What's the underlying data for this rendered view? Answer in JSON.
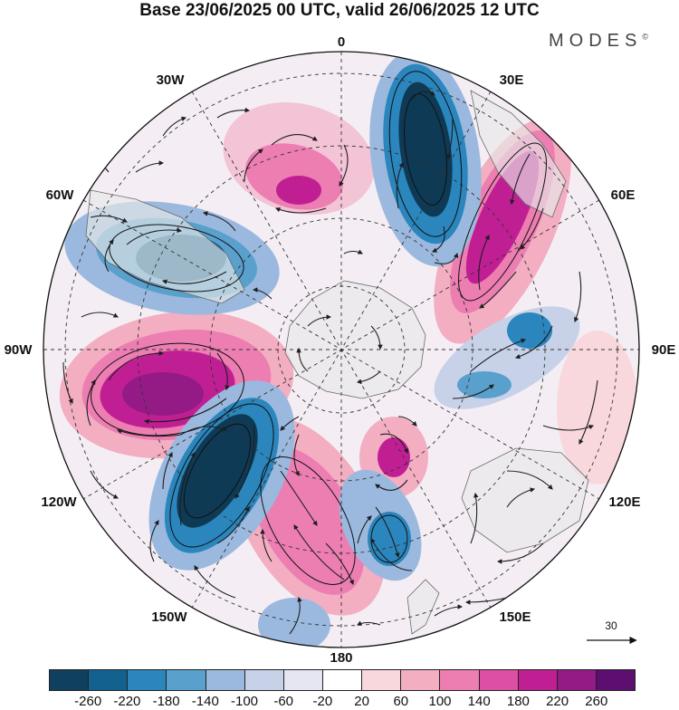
{
  "title": "Base 23/06/2025 00 UTC, valid 26/06/2025 12 UTC",
  "brand": "MODES",
  "brand_mark": "©",
  "longitude_labels": {
    "n": "0",
    "ne": "30E",
    "e60": "60E",
    "e90": "90E",
    "e120": "120E",
    "e150": "150E",
    "s": "180",
    "w150": "150W",
    "w120": "120W",
    "w90": "90W",
    "w60": "60W",
    "w30": "30W"
  },
  "reference_vector": "30",
  "colorbar": {
    "colors": [
      "#10405f",
      "#13618f",
      "#2a86bd",
      "#5aa0cd",
      "#9bb9de",
      "#c7d2e9",
      "#e6e6f3",
      "#ffffff",
      "#f8d8dc",
      "#f3aec2",
      "#ec7eb1",
      "#dc4fa4",
      "#c01f94",
      "#941a86",
      "#5c0f70"
    ],
    "tick_labels": [
      "-260",
      "-220",
      "-180",
      "-140",
      "-100",
      "-60",
      "-20",
      "20",
      "60",
      "100",
      "140",
      "180",
      "220",
      "260"
    ]
  },
  "anomaly_centers": [
    {
      "color": "#0e3a55",
      "label": "negative"
    },
    {
      "color": "#8d1a86",
      "label": "positive"
    }
  ],
  "colors": {
    "land": "#e8e8e8",
    "grid": "#333333",
    "coast": "#6a6a6a",
    "arrow": "#1e1e1e"
  }
}
